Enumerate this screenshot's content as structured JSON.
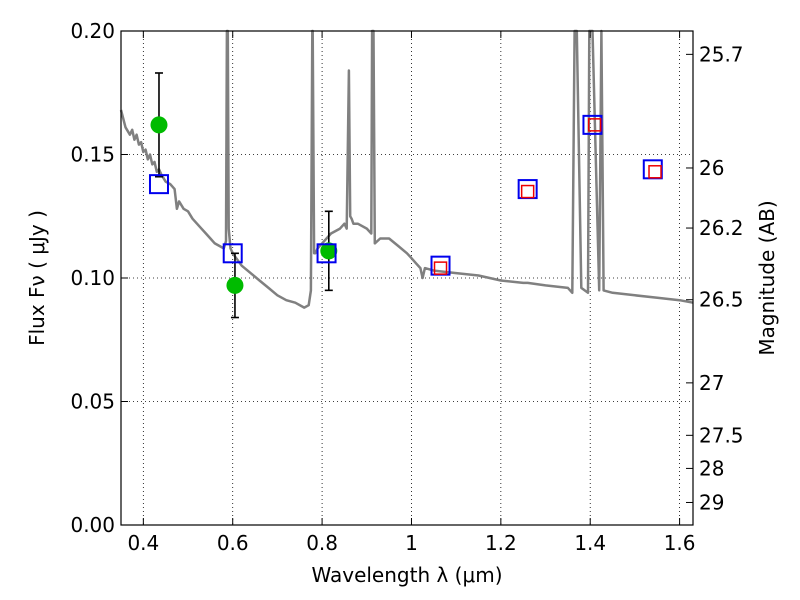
{
  "chart_data": {
    "type": "scatter",
    "title": "",
    "xlabel": "Wavelength  λ (μm)",
    "ylabel": "Flux  Fν  ( μJy )",
    "y2label": "Magnitude (AB)",
    "xlim": [
      0.35,
      1.63
    ],
    "ylim": [
      0.0,
      0.2
    ],
    "grid": true,
    "x_ticks": [
      {
        "value": 0.4,
        "label": "0.4"
      },
      {
        "value": 0.6,
        "label": "0.6"
      },
      {
        "value": 0.8,
        "label": "0.8"
      },
      {
        "value": 1.0,
        "label": "1"
      },
      {
        "value": 1.2,
        "label": "1.2"
      },
      {
        "value": 1.4,
        "label": "1.4"
      },
      {
        "value": 1.6,
        "label": "1.6"
      }
    ],
    "y_ticks": [
      {
        "value": 0.0,
        "label": "0.00"
      },
      {
        "value": 0.05,
        "label": "0.05"
      },
      {
        "value": 0.1,
        "label": "0.10"
      },
      {
        "value": 0.15,
        "label": "0.15"
      },
      {
        "value": 0.2,
        "label": "0.20"
      }
    ],
    "y2_ticks": [
      {
        "value": 25.7,
        "label": "25.7"
      },
      {
        "value": 26.0,
        "label": "26"
      },
      {
        "value": 26.2,
        "label": "26.2"
      },
      {
        "value": 26.5,
        "label": "26.5"
      },
      {
        "value": 27.0,
        "label": "27"
      },
      {
        "value": 27.5,
        "label": "27.5"
      },
      {
        "value": 28.0,
        "label": "28"
      },
      {
        "value": 29.0,
        "label": "29"
      }
    ],
    "series": [
      {
        "kind": "line",
        "color": "#808080",
        "x": [
          0.35,
          0.36,
          0.37,
          0.375,
          0.38,
          0.385,
          0.39,
          0.395,
          0.4,
          0.405,
          0.41,
          0.415,
          0.42,
          0.425,
          0.43,
          0.435,
          0.44,
          0.45,
          0.46,
          0.47,
          0.475,
          0.48,
          0.49,
          0.5,
          0.51,
          0.52,
          0.53,
          0.54,
          0.55,
          0.56,
          0.57,
          0.58,
          0.585,
          0.587,
          0.589,
          0.591,
          0.595,
          0.6,
          0.62,
          0.64,
          0.66,
          0.68,
          0.7,
          0.72,
          0.74,
          0.76,
          0.77,
          0.775,
          0.778,
          0.779,
          0.782,
          0.785,
          0.79,
          0.8,
          0.82,
          0.84,
          0.85,
          0.855,
          0.86,
          0.863,
          0.866,
          0.87,
          0.88,
          0.9,
          0.91,
          0.912,
          0.915,
          0.918,
          0.93,
          0.95,
          0.97,
          0.99,
          1.0,
          1.01,
          1.02,
          1.025,
          1.03,
          1.05,
          1.1,
          1.15,
          1.2,
          1.25,
          1.26,
          1.3,
          1.35,
          1.36,
          1.365,
          1.37,
          1.38,
          1.395,
          1.398,
          1.4,
          1.405,
          1.42,
          1.425,
          1.43,
          1.45,
          1.5,
          1.55,
          1.6,
          1.63
        ],
        "y": [
          0.168,
          0.161,
          0.158,
          0.16,
          0.156,
          0.158,
          0.154,
          0.155,
          0.151,
          0.152,
          0.148,
          0.15,
          0.146,
          0.147,
          0.143,
          0.144,
          0.142,
          0.139,
          0.138,
          0.136,
          0.128,
          0.131,
          0.128,
          0.127,
          0.124,
          0.122,
          0.12,
          0.118,
          0.116,
          0.114,
          0.113,
          0.112,
          0.115,
          0.2,
          0.2,
          0.12,
          0.112,
          0.11,
          0.105,
          0.102,
          0.099,
          0.096,
          0.093,
          0.091,
          0.09,
          0.088,
          0.089,
          0.095,
          0.2,
          0.2,
          0.11,
          0.11,
          0.112,
          0.114,
          0.118,
          0.12,
          0.122,
          0.12,
          0.184,
          0.125,
          0.124,
          0.122,
          0.122,
          0.12,
          0.118,
          0.2,
          0.2,
          0.114,
          0.116,
          0.116,
          0.113,
          0.11,
          0.108,
          0.106,
          0.104,
          0.1,
          0.104,
          0.103,
          0.102,
          0.101,
          0.099,
          0.098,
          0.098,
          0.097,
          0.096,
          0.094,
          0.2,
          0.2,
          0.096,
          0.094,
          0.2,
          0.2,
          0.2,
          0.095,
          0.2,
          0.095,
          0.094,
          0.093,
          0.092,
          0.091,
          0.09
        ]
      },
      {
        "kind": "points",
        "marker": "circle",
        "color": "#00bb00",
        "x": [
          0.435,
          0.605,
          0.815
        ],
        "y": [
          0.162,
          0.097,
          0.111
        ],
        "yerr": [
          0.021,
          0.013,
          0.016
        ]
      },
      {
        "kind": "points",
        "marker": "square",
        "color": "#0000ee",
        "x": [
          0.435,
          0.6,
          0.81,
          1.065,
          1.26,
          1.405,
          1.54
        ],
        "y": [
          0.138,
          0.11,
          0.11,
          0.105,
          0.136,
          0.162,
          0.144
        ]
      },
      {
        "kind": "points",
        "marker": "square-small",
        "color": "#ee0000",
        "x": [
          1.065,
          1.26,
          1.41,
          1.545
        ],
        "y": [
          0.104,
          0.135,
          0.162,
          0.143
        ]
      }
    ]
  }
}
